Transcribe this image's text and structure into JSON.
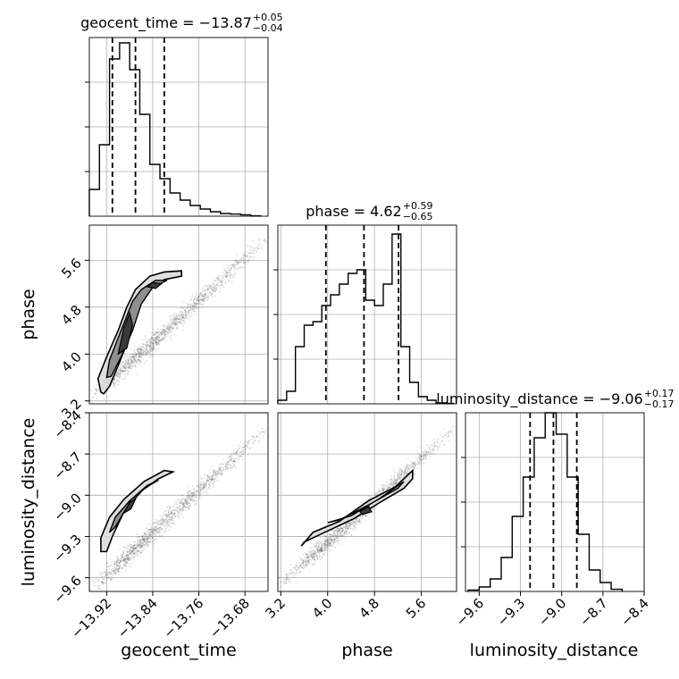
{
  "chart_data": {
    "type": "corner",
    "parameters": [
      "geocent_time",
      "phase",
      "luminosity_distance"
    ],
    "titles": [
      {
        "param": "geocent_time",
        "lhs": "geocent_time = ",
        "median": "−13.87",
        "plus": "+0.05",
        "minus": "−0.04"
      },
      {
        "param": "phase",
        "lhs": "phase = ",
        "median": "4.62",
        "plus": "+0.59",
        "minus": "−0.65"
      },
      {
        "param": "luminosity_distance",
        "lhs": "luminosity_distance = ",
        "median": "−9.06",
        "plus": "+0.17",
        "minus": "−0.17"
      }
    ],
    "axes": {
      "geocent_time": {
        "range": [
          -13.95,
          -13.64
        ],
        "ticks": [
          -13.92,
          -13.84,
          -13.76,
          -13.68
        ],
        "tick_labels": [
          "−13.92",
          "−13.84",
          "−13.76",
          "−13.68"
        ]
      },
      "phase": {
        "range": [
          3.15,
          6.2
        ],
        "ticks": [
          3.2,
          4.0,
          4.8,
          5.6
        ],
        "tick_labels": [
          "3.2",
          "4.0",
          "4.8",
          "5.6"
        ]
      },
      "luminosity_distance": {
        "range": [
          -9.7,
          -8.4
        ],
        "ticks": [
          -9.6,
          -9.3,
          -9.0,
          -8.7,
          -8.4
        ],
        "tick_labels": [
          "−9.6",
          "−9.3",
          "−9.0",
          "−8.7",
          "−8.4"
        ]
      }
    },
    "quantiles": {
      "geocent_time": [
        -13.91,
        -13.87,
        -13.82
      ],
      "phase": [
        3.97,
        4.62,
        5.21
      ],
      "luminosity_distance": [
        -9.23,
        -9.06,
        -8.89
      ]
    },
    "histograms": {
      "geocent_time": {
        "edges": [
          -13.95,
          -13.9325,
          -13.915,
          -13.8975,
          -13.88,
          -13.8625,
          -13.845,
          -13.8275,
          -13.81,
          -13.7925,
          -13.775,
          -13.7575,
          -13.74,
          -13.7225,
          -13.705,
          -13.6875,
          -13.67,
          -13.6525
        ],
        "counts": [
          0.15,
          0.4,
          0.88,
          0.97,
          0.82,
          0.57,
          0.29,
          0.21,
          0.13,
          0.09,
          0.06,
          0.04,
          0.025,
          0.015,
          0.012,
          0.008,
          0.002
        ],
        "ylim": [
          0,
          1.0
        ]
      },
      "phase": {
        "edges": [
          3.15,
          3.3,
          3.45,
          3.6,
          3.75,
          3.9,
          4.05,
          4.2,
          4.35,
          4.5,
          4.65,
          4.8,
          4.95,
          5.1,
          5.25,
          5.4,
          5.55,
          5.7,
          5.85,
          6.0,
          6.15
        ],
        "counts": [
          0.02,
          0.07,
          0.32,
          0.44,
          0.46,
          0.55,
          0.61,
          0.67,
          0.73,
          0.75,
          0.58,
          0.55,
          0.67,
          0.95,
          0.32,
          0.12,
          0.04,
          0.02,
          0.005,
          0.002
        ],
        "ylim": [
          0,
          1.0
        ]
      },
      "luminosity_distance": {
        "edges": [
          -9.68,
          -9.6,
          -9.52,
          -9.44,
          -9.36,
          -9.28,
          -9.2,
          -9.12,
          -9.04,
          -8.96,
          -8.88,
          -8.8,
          -8.72,
          -8.64,
          -8.56
        ],
        "counts": [
          0.008,
          0.025,
          0.07,
          0.19,
          0.42,
          0.64,
          0.86,
          1.0,
          0.88,
          0.64,
          0.32,
          0.12,
          0.05,
          0.012
        ],
        "ylim": [
          0,
          1.0
        ]
      }
    },
    "contours_2d": {
      "phase_vs_geocent_time": {
        "x": "geocent_time",
        "y": "phase",
        "outer": [
          [
            -13.93,
            3.35
          ],
          [
            -13.935,
            3.58
          ],
          [
            -13.92,
            3.95
          ],
          [
            -13.9,
            4.4
          ],
          [
            -13.885,
            4.8
          ],
          [
            -13.87,
            5.1
          ],
          [
            -13.845,
            5.33
          ],
          [
            -13.82,
            5.4
          ],
          [
            -13.79,
            5.42
          ],
          [
            -13.79,
            5.33
          ],
          [
            -13.82,
            5.27
          ],
          [
            -13.845,
            5.1
          ],
          [
            -13.87,
            4.75
          ],
          [
            -13.88,
            4.3
          ],
          [
            -13.9,
            3.8
          ],
          [
            -13.915,
            3.45
          ],
          [
            -13.925,
            3.32
          ]
        ],
        "middle": [
          [
            -13.92,
            3.6
          ],
          [
            -13.915,
            3.9
          ],
          [
            -13.895,
            4.4
          ],
          [
            -13.875,
            4.9
          ],
          [
            -13.86,
            5.1
          ],
          [
            -13.835,
            5.26
          ],
          [
            -13.815,
            5.26
          ],
          [
            -13.84,
            5.14
          ],
          [
            -13.86,
            4.85
          ],
          [
            -13.875,
            4.4
          ],
          [
            -13.895,
            3.95
          ],
          [
            -13.912,
            3.62
          ]
        ],
        "inner": [
          [
            -13.9,
            4.0
          ],
          [
            -13.89,
            4.45
          ],
          [
            -13.88,
            4.7
          ],
          [
            -13.875,
            4.5
          ],
          [
            -13.885,
            4.1
          ]
        ],
        "inner2": [
          [
            -13.85,
            5.15
          ],
          [
            -13.84,
            5.22
          ],
          [
            -13.825,
            5.2
          ],
          [
            -13.835,
            5.12
          ]
        ],
        "scatter_extent": {
          "x": [
            -13.95,
            -13.64
          ],
          "y": [
            3.2,
            6.0
          ]
        }
      },
      "luminosity_distance_vs_geocent_time": {
        "x": "geocent_time",
        "y": "luminosity_distance",
        "outer": [
          [
            -13.93,
            -9.41
          ],
          [
            -13.93,
            -9.31
          ],
          [
            -13.915,
            -9.16
          ],
          [
            -13.89,
            -9.03
          ],
          [
            -13.855,
            -8.9
          ],
          [
            -13.82,
            -8.82
          ],
          [
            -13.805,
            -8.83
          ],
          [
            -13.83,
            -8.88
          ],
          [
            -13.86,
            -8.97
          ],
          [
            -13.89,
            -9.12
          ],
          [
            -13.91,
            -9.3
          ],
          [
            -13.92,
            -9.41
          ]
        ],
        "middle": [
          [
            -13.915,
            -9.27
          ],
          [
            -13.905,
            -9.16
          ],
          [
            -13.88,
            -9.04
          ],
          [
            -13.85,
            -8.93
          ],
          [
            -13.83,
            -8.89
          ],
          [
            -13.855,
            -8.95
          ],
          [
            -13.885,
            -9.09
          ],
          [
            -13.905,
            -9.23
          ]
        ],
        "inner": [
          [
            -13.89,
            -9.13
          ],
          [
            -13.88,
            -9.05
          ],
          [
            -13.87,
            -9.03
          ],
          [
            -13.878,
            -9.1
          ]
        ],
        "scatter_extent": {
          "x": [
            -13.95,
            -13.64
          ],
          "y": [
            -9.7,
            -8.5
          ]
        }
      },
      "luminosity_distance_vs_phase": {
        "x": "phase",
        "y": "luminosity_distance",
        "outer": [
          [
            3.55,
            -9.37
          ],
          [
            3.75,
            -9.27
          ],
          [
            4.2,
            -9.19
          ],
          [
            4.7,
            -9.04
          ],
          [
            5.15,
            -8.94
          ],
          [
            5.45,
            -8.82
          ],
          [
            5.45,
            -8.88
          ],
          [
            5.3,
            -8.95
          ],
          [
            4.9,
            -9.05
          ],
          [
            4.45,
            -9.17
          ],
          [
            4.0,
            -9.26
          ],
          [
            3.6,
            -9.34
          ]
        ],
        "middle": [
          [
            4.0,
            -9.2
          ],
          [
            4.4,
            -9.15
          ],
          [
            4.9,
            -9.02
          ],
          [
            5.3,
            -8.9
          ],
          [
            5.2,
            -8.95
          ],
          [
            4.7,
            -9.07
          ],
          [
            4.2,
            -9.18
          ]
        ],
        "inner": [
          [
            4.55,
            -9.12
          ],
          [
            4.7,
            -9.08
          ],
          [
            4.75,
            -9.12
          ],
          [
            4.6,
            -9.14
          ]
        ],
        "scatter_extent": {
          "x": [
            3.2,
            6.2
          ],
          "y": [
            -9.65,
            -8.5
          ]
        }
      }
    }
  }
}
